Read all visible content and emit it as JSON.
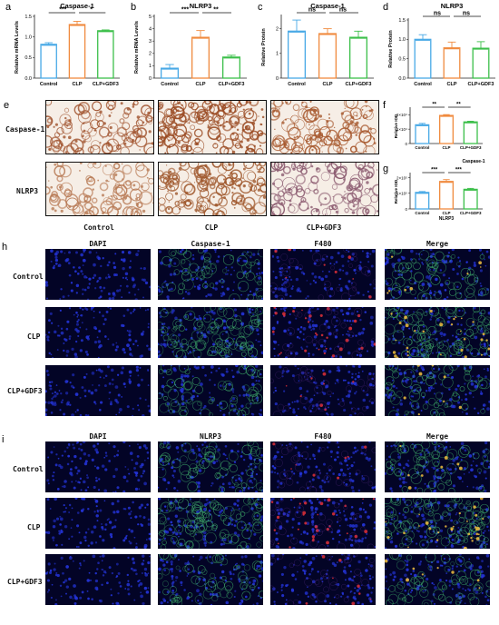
{
  "panels": {
    "a": "a",
    "b": "b",
    "c": "c",
    "d": "d",
    "e": "e",
    "f": "f",
    "g": "g",
    "h": "h",
    "i": "i"
  },
  "groups": [
    "Control",
    "CLP",
    "CLP+GDF3"
  ],
  "colors": {
    "control": "#48a9e6",
    "clp": "#f08a3e",
    "gdf3": "#3cbf4a"
  },
  "chart_data": [
    {
      "id": "a",
      "type": "bar",
      "title": "Caspase-1",
      "ylabel": "Relative mRNA Levels",
      "categories": [
        "Control",
        "CLP",
        "CLP+GDF3"
      ],
      "values": [
        0.82,
        1.3,
        1.15
      ],
      "errors": [
        0.04,
        0.08,
        0.02
      ],
      "ylim": [
        0,
        1.5
      ],
      "yticks": [
        "0.0",
        "0.5",
        "1.0",
        "1.5"
      ],
      "significance": [
        {
          "from": 0,
          "to": 1,
          "label": "***"
        },
        {
          "from": 1,
          "to": 2,
          "label": "*"
        }
      ]
    },
    {
      "id": "b",
      "type": "bar",
      "title": "NLRP3",
      "ylabel": "Relative mRNA Levels",
      "categories": [
        "Control",
        "CLP",
        "CLP+GDF3"
      ],
      "values": [
        0.8,
        3.3,
        1.7
      ],
      "errors": [
        0.3,
        0.55,
        0.15
      ],
      "ylim": [
        0,
        5
      ],
      "yticks": [
        "0",
        "1",
        "2",
        "3",
        "4",
        "5"
      ],
      "significance": [
        {
          "from": 0,
          "to": 1,
          "label": "***"
        },
        {
          "from": 1,
          "to": 2,
          "label": "**"
        }
      ]
    },
    {
      "id": "c",
      "type": "bar",
      "title": "Caspase-1",
      "ylabel": "Relative Protein",
      "categories": [
        "Control",
        "CLP",
        "CLP+GDF3"
      ],
      "values": [
        1.9,
        1.8,
        1.65
      ],
      "errors": [
        0.45,
        0.2,
        0.25
      ],
      "ylim": [
        0,
        2.5
      ],
      "yticks": [
        "0",
        "1",
        "2"
      ],
      "significance": [
        {
          "from": 0,
          "to": 1,
          "label": "ns"
        },
        {
          "from": 1,
          "to": 2,
          "label": "ns"
        }
      ]
    },
    {
      "id": "d",
      "type": "bar",
      "title": "NLRP3",
      "ylabel": "Relative Protein",
      "categories": [
        "Control",
        "CLP",
        "CLP+GDF3"
      ],
      "values": [
        1.0,
        0.78,
        0.77
      ],
      "errors": [
        0.12,
        0.15,
        0.17
      ],
      "ylim": [
        0,
        1.5
      ],
      "yticks": [
        "0.0",
        "0.5",
        "1.0",
        "1.5"
      ],
      "significance": [
        {
          "from": 0,
          "to": 1,
          "label": "ns"
        },
        {
          "from": 1,
          "to": 2,
          "label": "ns"
        }
      ]
    },
    {
      "id": "f",
      "type": "bar",
      "title": "",
      "ylabel": "Relative IOD",
      "xlabel": "Caspase-1",
      "categories": [
        "Control",
        "CLP",
        "CLP+GDF3"
      ],
      "values": [
        1.3,
        1.95,
        1.5
      ],
      "errors": [
        0.1,
        0.06,
        0.05
      ],
      "ylim": [
        0,
        2.4
      ],
      "yticks": [
        "0",
        "1×10⁴",
        "2×10⁴"
      ],
      "significance": [
        {
          "from": 0,
          "to": 1,
          "label": "**"
        },
        {
          "from": 1,
          "to": 2,
          "label": "**"
        }
      ]
    },
    {
      "id": "g",
      "type": "bar",
      "title": "",
      "ylabel": "Relative IOD",
      "xlabel": "NLRP3",
      "categories": [
        "Control",
        "CLP",
        "CLP+GDF3"
      ],
      "values": [
        1.05,
        1.75,
        1.25
      ],
      "errors": [
        0.06,
        0.12,
        0.06
      ],
      "ylim": [
        0,
        2.2
      ],
      "yticks": [
        "0",
        "1×10⁵",
        "2×10⁵"
      ],
      "significance": [
        {
          "from": 0,
          "to": 1,
          "label": "***"
        },
        {
          "from": 1,
          "to": 2,
          "label": "***"
        }
      ]
    }
  ],
  "panel_e": {
    "rows": [
      "Caspase-1",
      "NLRP3"
    ],
    "cols": [
      "Control",
      "CLP",
      "CLP+GDF3"
    ]
  },
  "panel_h": {
    "cols": [
      "DAPI",
      "Caspase-1",
      "F480",
      "Merge"
    ],
    "rows": [
      "Control",
      "CLP",
      "CLP+GDF3"
    ]
  },
  "panel_i": {
    "cols": [
      "DAPI",
      "NLRP3",
      "F480",
      "Merge"
    ],
    "rows": [
      "Control",
      "CLP",
      "CLP+GDF3"
    ]
  }
}
